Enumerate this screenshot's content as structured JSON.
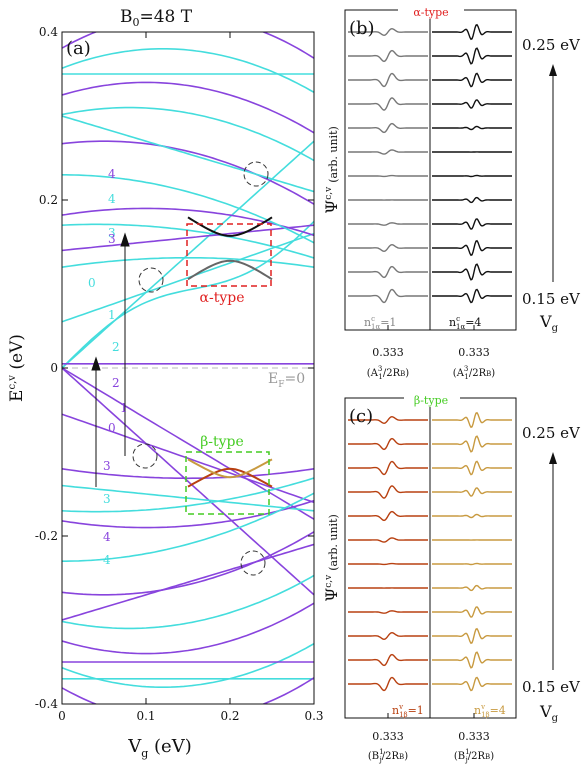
{
  "title_prefix": "B",
  "title_sub": "0",
  "title_rest": "=48 T",
  "panel_a": {
    "label": "(a)",
    "ylabel_main": "E",
    "ylabel_sup": "c,v",
    "ylabel_unit": " (eV)",
    "xlabel_main": "V",
    "xlabel_sub": "g",
    "xlabel_unit": " (eV)",
    "alpha_label": "α-type",
    "beta_label": "β-type",
    "ef_label": "E",
    "ef_sub": "F",
    "ef_rest": "=0",
    "level_labels": {
      "cyan_upper": [
        "0",
        "1",
        "2",
        "3",
        "4"
      ],
      "purple_upper": [
        "2",
        "3",
        "4"
      ],
      "purple_lower": [
        "1",
        "0",
        "3",
        "4"
      ],
      "cyan_lower": [
        "3",
        "4"
      ]
    },
    "colors": {
      "purple": "#8844dd",
      "cyan": "#44dddd",
      "alpha": "#e02020",
      "beta": "#44cc22"
    }
  },
  "panel_b": {
    "label": "(b)",
    "type_label": "α-type",
    "left_tick": "0.333",
    "right_tick": "0.333",
    "left_xlabel": "(A",
    "left_xlabel_sub": "1",
    "left_xlabel_sup": "3",
    "left_xlabel_rest": "/2R",
    "left_xlabel_B": "B",
    "left_xlabel_end": ")",
    "right_xlabel": "(A",
    "right_xlabel_sub": "1",
    "right_xlabel_sup": "3",
    "right_xlabel_rest": "/2R",
    "right_xlabel_B": "B",
    "right_xlabel_end": ")",
    "left_n": "n",
    "left_n_sup": "c",
    "left_n_sub": "1α",
    "left_n_val": "=1",
    "right_n": "n",
    "right_n_sup": "c",
    "right_n_sub": "1α",
    "right_n_val": "=4",
    "top_energy": "0.25 eV",
    "bottom_energy": "0.15 eV",
    "vg_main": "V",
    "vg_sub": "g",
    "ylabel_main": "Ψ",
    "ylabel_sup": "c,v",
    "ylabel_paren": "(arb. unit)"
  },
  "panel_c": {
    "label": "(c)",
    "type_label": "β-type",
    "left_tick": "0.333",
    "right_tick": "0.333",
    "left_xlabel": "(B",
    "left_xlabel_sup": "1",
    "left_xlabel_sub": "j",
    "left_xlabel_rest": "/2R",
    "left_xlabel_B": "B",
    "left_xlabel_end": ")",
    "right_xlabel": "(B",
    "right_xlabel_sup": "1",
    "right_xlabel_sub": "j",
    "right_xlabel_rest": "/2R",
    "right_xlabel_B": "B",
    "right_xlabel_end": ")",
    "left_n": "n",
    "left_n_sup": "v",
    "left_n_sub": "1β",
    "left_n_val": "=1",
    "right_n": "n",
    "right_n_sup": "v",
    "right_n_sub": "1β",
    "right_n_val": "=4",
    "top_energy": "0.25 eV",
    "bottom_energy": "0.15 eV",
    "vg_main": "V",
    "vg_sub": "g",
    "ylabel_main": "Ψ",
    "ylabel_sup": "c,v",
    "ylabel_paren": "(arb. unit)"
  },
  "chart_data": [
    {
      "type": "line",
      "xlim": [
        0,
        0.3
      ],
      "ylim": [
        -0.4,
        0.4
      ],
      "xticks": [
        "0",
        "0.1",
        "0.2",
        "0.3"
      ],
      "yticks": [
        "0.4",
        "0.2",
        "0",
        "-0.2",
        "-0.4"
      ],
      "grid": false
    }
  ]
}
